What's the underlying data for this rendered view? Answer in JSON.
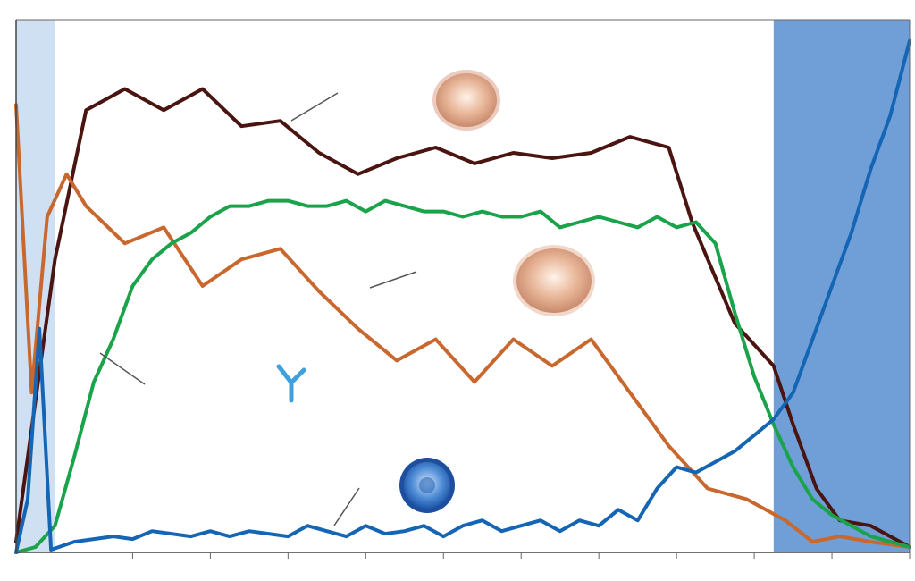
{
  "chart_data": {
    "type": "line",
    "title": "",
    "xlabel": "",
    "ylabel": "",
    "xlim": [
      0,
      23
    ],
    "ylim": [
      0,
      100
    ],
    "grid": false,
    "legend": "none",
    "x": [
      0,
      0.4,
      0.8,
      1,
      1.5,
      2,
      2.5,
      3,
      3.5,
      4,
      4.5,
      5,
      5.5,
      6,
      6.5,
      7,
      7.5,
      8,
      8.5,
      9,
      9.5,
      10,
      10.5,
      11,
      11.5,
      12,
      12.5,
      13,
      13.5,
      14,
      14.5,
      15,
      15.5,
      16,
      16.5,
      17,
      17.5,
      18,
      18.5,
      19,
      19.5,
      20,
      20.5,
      21,
      21.5,
      22,
      22.5,
      23
    ],
    "shaded_regions": [
      {
        "from": 0,
        "to": 1,
        "color": "#cfe0f3"
      },
      {
        "from": 19.5,
        "to": 23,
        "color": "#6f9fd6"
      }
    ],
    "series": [
      {
        "color": "#4a1410",
        "x": [
          0,
          1,
          1.8,
          2.8,
          3.8,
          4.8,
          5.8,
          6.8,
          7.8,
          8.8,
          9.8,
          10.8,
          11.8,
          12.8,
          13.8,
          14.8,
          15.8,
          16.8,
          17.4,
          18.5,
          19.5,
          20,
          20.6,
          21.2,
          22,
          23
        ],
        "values": [
          2,
          55,
          83,
          87,
          83,
          87,
          80,
          81,
          75,
          71,
          74,
          76,
          73,
          75,
          74,
          75,
          78,
          76,
          62,
          43,
          35,
          24,
          12,
          6,
          5,
          1
        ]
      },
      {
        "color": "#c9682e",
        "x": [
          0,
          0.4,
          0.8,
          1.3,
          1.8,
          2.8,
          3.8,
          4.8,
          5.8,
          6.8,
          7.8,
          8.8,
          9.8,
          10.8,
          11.8,
          12.8,
          13.8,
          14.8,
          15.8,
          16.8,
          17.8,
          18.8,
          19.8,
          20.5,
          21.2,
          22,
          23
        ],
        "values": [
          84,
          30,
          63,
          71,
          65,
          58,
          61,
          50,
          55,
          57,
          49,
          42,
          36,
          40,
          32,
          40,
          35,
          40,
          30,
          20,
          12,
          10,
          6,
          2,
          3,
          2,
          1
        ]
      },
      {
        "color": "#1aa34a",
        "x": [
          0,
          0.5,
          1,
          1.5,
          2,
          2.5,
          3,
          3.5,
          4,
          4.5,
          5,
          5.5,
          6,
          6.5,
          7,
          7.5,
          8,
          8.5,
          9,
          9.5,
          10,
          10.5,
          11,
          11.5,
          12,
          12.5,
          13,
          13.5,
          14,
          14.5,
          15,
          15.5,
          16,
          16.5,
          17,
          17.5,
          18,
          18.5,
          19,
          19.5,
          20,
          20.5,
          21,
          21.5,
          22,
          22.5,
          23
        ],
        "values": [
          0,
          1,
          5,
          18,
          32,
          40,
          50,
          55,
          58,
          60,
          63,
          65,
          65,
          66,
          66,
          65,
          65,
          66,
          64,
          66,
          65,
          64,
          64,
          63,
          64,
          63,
          63,
          64,
          61,
          62,
          63,
          62,
          61,
          63,
          61,
          62,
          58,
          45,
          33,
          24,
          16,
          10,
          7,
          5,
          3,
          2,
          1
        ]
      },
      {
        "color": "#1565b5",
        "x": [
          0,
          0.3,
          0.6,
          0.9,
          1.5,
          2,
          2.5,
          3,
          3.5,
          4,
          4.5,
          5,
          5.5,
          6,
          6.5,
          7,
          7.5,
          8,
          8.5,
          9,
          9.5,
          10,
          10.5,
          11,
          11.5,
          12,
          12.5,
          13,
          13.5,
          14,
          14.5,
          15,
          15.5,
          16,
          16.5,
          17,
          17.5,
          18,
          18.5,
          19,
          19.5,
          20,
          20.5,
          21,
          21.5,
          22,
          22.5,
          23
        ],
        "values": [
          0,
          10,
          42,
          0.5,
          2,
          2.5,
          3,
          2.5,
          4,
          3.5,
          3,
          4,
          3,
          4,
          3.5,
          3,
          5,
          4,
          3,
          5,
          3.5,
          4,
          5,
          3,
          5,
          6,
          4,
          5,
          6,
          4,
          6,
          5,
          8,
          6,
          12,
          16,
          15,
          17,
          19,
          22,
          25,
          30,
          40,
          50,
          60,
          72,
          82,
          96
        ]
      }
    ],
    "icons": [
      "orange-spiky-cell-icon",
      "orange-spiky-cell-icon",
      "antibody-icon",
      "blue-spiky-cell-icon"
    ]
  }
}
